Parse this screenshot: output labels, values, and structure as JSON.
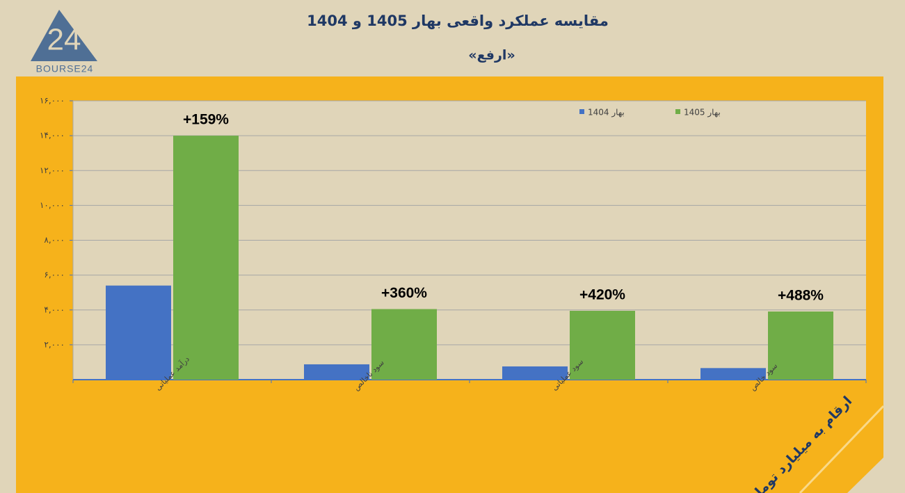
{
  "chart_data": {
    "type": "bar",
    "title": "مقایسه عملکرد واقعی بهار 1405 و 1404",
    "subtitle": "«ارفع»",
    "logo": {
      "mark": "24",
      "name": "BOURSE24"
    },
    "note": "ارقام به میلیارد تومان",
    "categories": [
      "درآمد عملیاتی",
      "سود ناخالص",
      "سود عملیاتی",
      "سود خالص"
    ],
    "series": [
      {
        "name": "بهار 1404",
        "color": "#4472c4",
        "values": [
          5400,
          880,
          760,
          665
        ]
      },
      {
        "name": "بهار 1405",
        "color": "#70ad47",
        "values": [
          14000,
          4050,
          3950,
          3910
        ]
      }
    ],
    "annotations": [
      "+159%",
      "+360%",
      "+420%",
      "+488%"
    ],
    "ylim": [
      0,
      16000
    ],
    "yticks": [
      {
        "value": 2000,
        "label": "۲,۰۰۰"
      },
      {
        "value": 4000,
        "label": "۴,۰۰۰"
      },
      {
        "value": 6000,
        "label": "۶,۰۰۰"
      },
      {
        "value": 8000,
        "label": "۸,۰۰۰"
      },
      {
        "value": 10000,
        "label": "۱۰,۰۰۰"
      },
      {
        "value": 12000,
        "label": "۱۲,۰۰۰"
      },
      {
        "value": 14000,
        "label": "۱۴,۰۰۰"
      },
      {
        "value": 16000,
        "label": "۱۶,۰۰۰"
      }
    ],
    "grid": true,
    "legend": "top"
  }
}
